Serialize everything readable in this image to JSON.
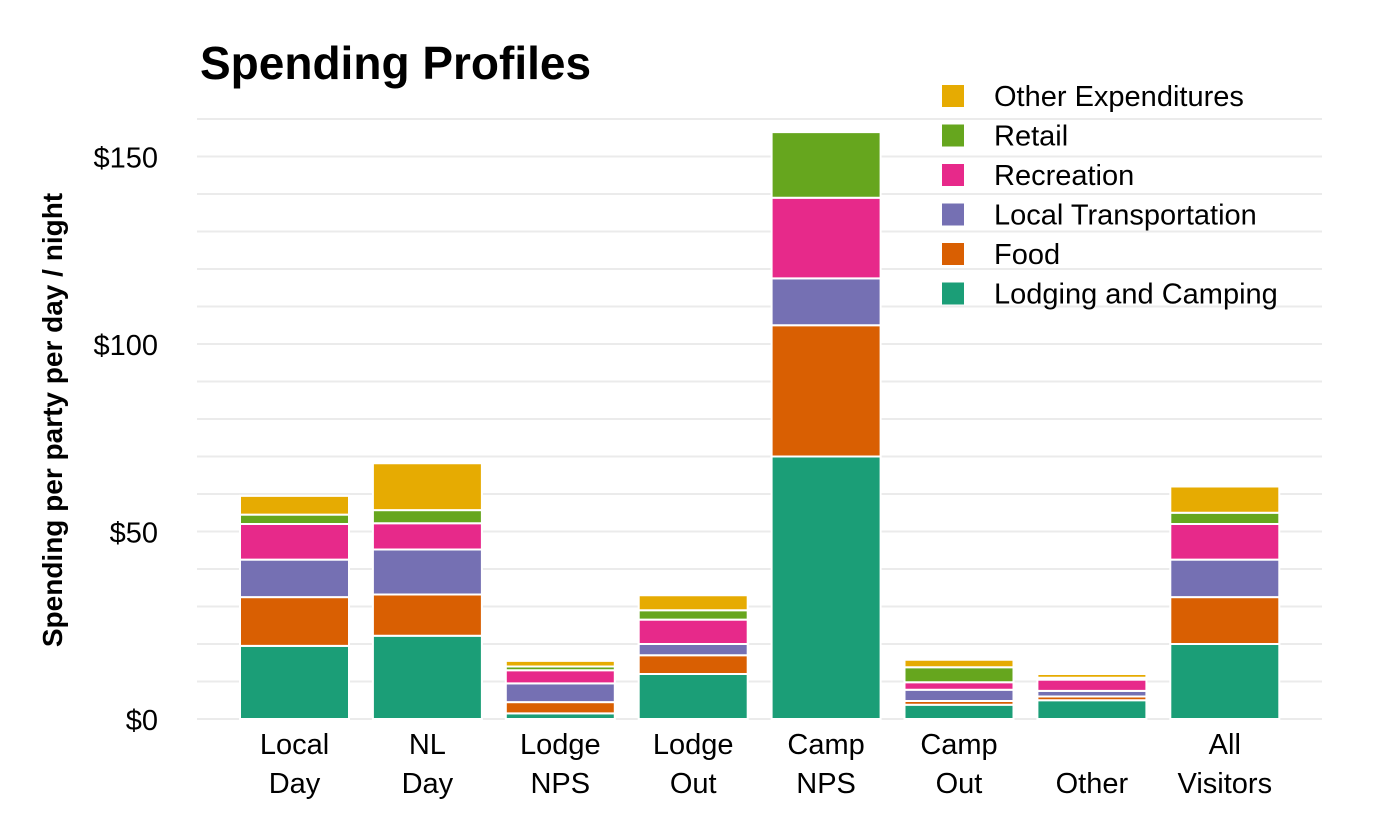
{
  "chart_data": {
    "type": "bar",
    "stacked": true,
    "title": "Spending Profiles",
    "xlabel": "",
    "ylabel": "Spending per party per day / night",
    "ylim": [
      0,
      160
    ],
    "yticks": [
      0,
      50,
      100,
      150
    ],
    "ytick_labels": [
      "$0",
      "$50",
      "$100",
      "$150"
    ],
    "grid": true,
    "legend_position": "top-right",
    "categories": [
      [
        "Local",
        "Day"
      ],
      [
        "NL",
        "Day"
      ],
      [
        "Lodge",
        "NPS"
      ],
      [
        "Lodge",
        "Out"
      ],
      [
        "Camp",
        "NPS"
      ],
      [
        "Camp",
        "Out"
      ],
      [
        "",
        "Other"
      ],
      [
        "All",
        "Visitors"
      ]
    ],
    "series": [
      {
        "name": "Lodging and Camping",
        "color": "#1b9e77",
        "values": [
          19.5,
          22.2,
          1.5,
          12.0,
          70.0,
          3.8,
          5.0,
          20.0
        ]
      },
      {
        "name": "Food",
        "color": "#d95f02",
        "values": [
          13.0,
          11.0,
          3.0,
          5.0,
          35.0,
          1.0,
          1.0,
          12.5
        ]
      },
      {
        "name": "Local Transportation",
        "color": "#7570b3",
        "values": [
          10.0,
          12.0,
          5.0,
          3.0,
          12.5,
          3.0,
          1.5,
          10.0
        ]
      },
      {
        "name": "Recreation",
        "color": "#e7298a",
        "values": [
          9.5,
          7.0,
          3.5,
          6.5,
          21.5,
          2.0,
          3.0,
          9.5
        ]
      },
      {
        "name": "Retail",
        "color": "#66a61e",
        "values": [
          2.5,
          3.5,
          1.0,
          2.5,
          17.5,
          4.0,
          0.5,
          3.0
        ]
      },
      {
        "name": "Other Expenditures",
        "color": "#e6ab02",
        "values": [
          5.0,
          12.5,
          1.5,
          4.0,
          0.0,
          2.0,
          1.0,
          7.0
        ]
      }
    ]
  }
}
